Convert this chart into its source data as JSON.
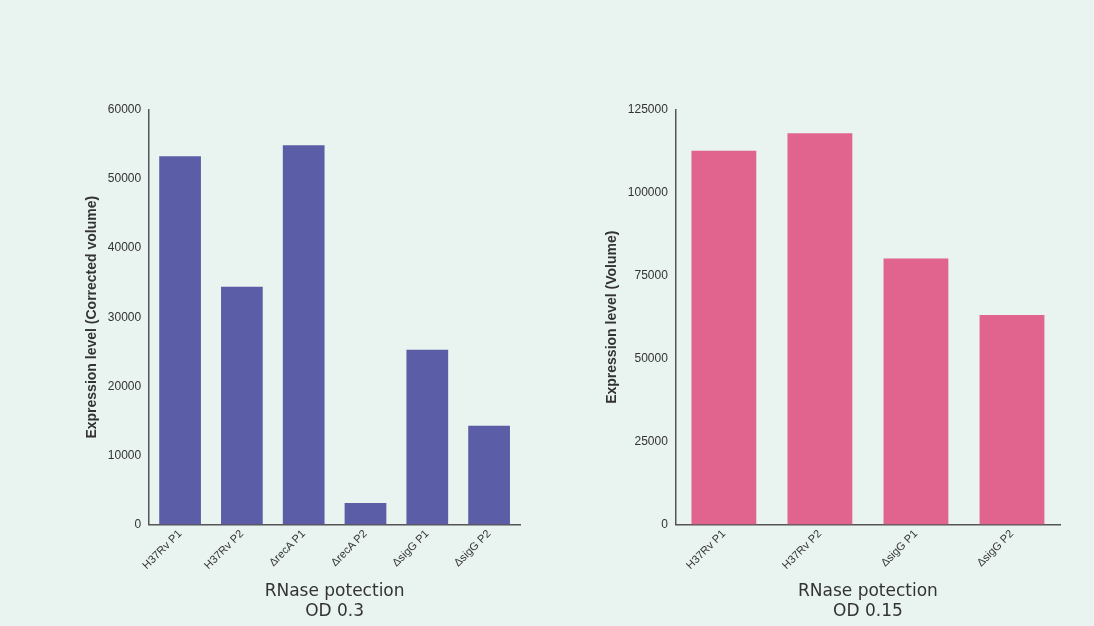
{
  "chart_data": [
    {
      "type": "bar",
      "xlabel": "RNase potection\nOD 0.3",
      "ylabel": "Expression level (Corrected volume)",
      "categories": [
        "H37Rv P1",
        "H37Rv P2",
        "ΔrecA P1",
        "ΔrecA P2",
        "ΔsigG P1",
        "ΔsigG P2"
      ],
      "values": [
        53300,
        34400,
        54900,
        3100,
        25300,
        14300
      ],
      "color": "#5b5ea6",
      "ylim": [
        0,
        60000
      ],
      "yticks": [
        0,
        10000,
        20000,
        30000,
        40000,
        50000,
        60000
      ],
      "grid": false,
      "legend": false
    },
    {
      "type": "bar",
      "xlabel": "RNase potection\nOD 0.15",
      "ylabel": "Expression level (Volume)",
      "categories": [
        "H37Rv P1",
        "H37Rv P2",
        "ΔsigG P1",
        "ΔsigG P2"
      ],
      "values": [
        112700,
        118000,
        80200,
        63200
      ],
      "color": "#e0648e",
      "ylim": [
        0,
        125000
      ],
      "yticks": [
        0,
        25000,
        50000,
        75000,
        100000,
        125000
      ],
      "grid": false,
      "legend": false
    }
  ]
}
